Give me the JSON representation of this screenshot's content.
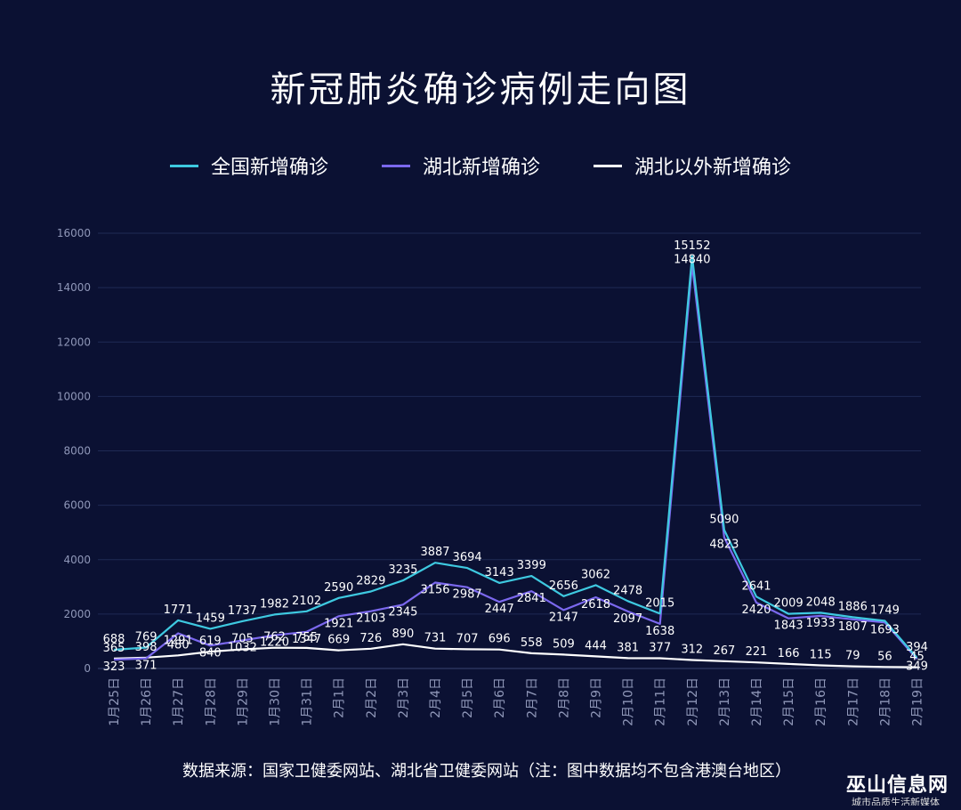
{
  "title": "新冠肺炎确诊病例走向图",
  "source_note": "数据来源：国家卫健委网站、湖北省卫健委网站（注：图中数据均不包含港澳台地区）",
  "watermark": "巫山信息网",
  "watermark_sub": "城市品质生活新媒体",
  "colors": {
    "background": "#0b1133",
    "national": "#3ec9e0",
    "hubei": "#7b68ee",
    "outside": "#ffffff",
    "grid": "#1f2a55",
    "axis_text": "#8f97b8"
  },
  "chart_data": {
    "type": "line",
    "title": "新冠肺炎确诊病例走向图",
    "xlabel": "",
    "ylabel": "",
    "ylim": [
      0,
      16000
    ],
    "yticks": [
      0,
      2000,
      4000,
      6000,
      8000,
      10000,
      12000,
      14000,
      16000
    ],
    "grid": true,
    "legend_position": "top-center",
    "categories": [
      "1月25日",
      "1月26日",
      "1月27日",
      "1月28日",
      "1月29日",
      "1月30日",
      "1月31日",
      "2月1日",
      "2月2日",
      "2月3日",
      "2月4日",
      "2月5日",
      "2月6日",
      "2月7日",
      "2月8日",
      "2月9日",
      "2月10日",
      "2月11日",
      "2月12日",
      "2月13日",
      "2月14日",
      "2月15日",
      "2月16日",
      "2月17日",
      "2月18日",
      "2月19日"
    ],
    "series": [
      {
        "name": "全国新增确诊",
        "color": "#3ec9e0",
        "values": [
          688,
          769,
          1771,
          1459,
          1737,
          1982,
          2102,
          2590,
          2829,
          3235,
          3887,
          3694,
          3143,
          3399,
          2656,
          3062,
          2478,
          2015,
          15152,
          5090,
          2641,
          2009,
          2048,
          1886,
          1749,
          394
        ]
      },
      {
        "name": "湖北新增确诊",
        "color": "#7b68ee",
        "values": [
          323,
          371,
          1291,
          840,
          1032,
          1220,
          1347,
          1921,
          2103,
          2345,
          3156,
          2987,
          2447,
          2841,
          2147,
          2618,
          2097,
          1638,
          14840,
          4823,
          2420,
          1843,
          1933,
          1807,
          1693,
          349
        ]
      },
      {
        "name": "湖北以外新增确诊",
        "color": "#ffffff",
        "values": [
          365,
          398,
          480,
          619,
          705,
          762,
          755,
          669,
          726,
          890,
          731,
          707,
          696,
          558,
          509,
          444,
          381,
          377,
          312,
          267,
          221,
          166,
          115,
          79,
          56,
          45
        ]
      }
    ]
  }
}
